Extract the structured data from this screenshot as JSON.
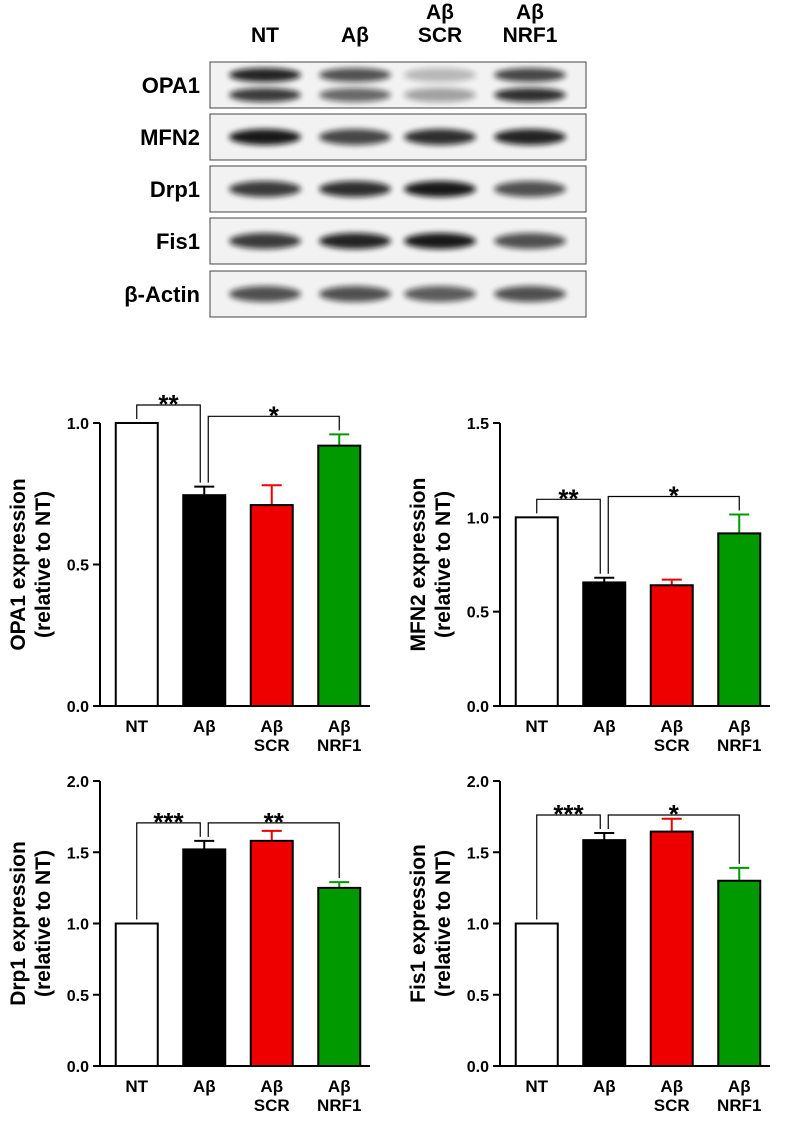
{
  "blot": {
    "lanes": [
      "NT",
      "Aβ",
      "Aβ\nSCR",
      "Aβ\nNRF1"
    ],
    "rows": [
      "OPA1",
      "MFN2",
      "Drp1",
      "Fis1",
      "β-Actin"
    ]
  },
  "chart_data": [
    {
      "type": "bar",
      "ylabel": "OPA1 expression\n(relative to NT)",
      "categories": [
        "NT",
        "Aβ",
        "Aβ\nSCR",
        "Aβ\nNRF1"
      ],
      "values": [
        1.0,
        0.745,
        0.71,
        0.92
      ],
      "errors": [
        0,
        0.03,
        0.07,
        0.04
      ],
      "colors": [
        "#ffffff",
        "#000000",
        "#ee0000",
        "#009900"
      ],
      "ylim": [
        0,
        1.0
      ],
      "yticks": [
        {
          "value": 0,
          "label": "0.0"
        },
        0.5,
        {
          "value": 1,
          "label": "1.0"
        }
      ],
      "annotations": [
        {
          "text": "**",
          "from": 0,
          "to": 1
        },
        {
          "text": "*",
          "from": 1,
          "to": 3
        }
      ]
    },
    {
      "type": "bar",
      "ylabel": "MFN2 expression\n(relative to NT)",
      "categories": [
        "NT",
        "Aβ",
        "Aβ\nSCR",
        "Aβ\nNRF1"
      ],
      "values": [
        1.0,
        0.655,
        0.64,
        0.915
      ],
      "errors": [
        0,
        0.025,
        0.03,
        0.1
      ],
      "colors": [
        "#ffffff",
        "#000000",
        "#ee0000",
        "#009900"
      ],
      "ylim": [
        0,
        1.5
      ],
      "yticks": [
        {
          "value": 0,
          "label": "0.0"
        },
        0.5,
        {
          "value": 1,
          "label": "1.0"
        },
        1.5
      ],
      "annotations": [
        {
          "text": "**",
          "from": 0,
          "to": 1
        },
        {
          "text": "*",
          "from": 1,
          "to": 3
        }
      ]
    },
    {
      "type": "bar",
      "ylabel": "Drp1 expression\n(relative to NT)",
      "categories": [
        "NT",
        "Aβ",
        "Aβ\nSCR",
        "Aβ\nNRF1"
      ],
      "values": [
        1.0,
        1.52,
        1.58,
        1.25
      ],
      "errors": [
        0,
        0.06,
        0.07,
        0.04
      ],
      "colors": [
        "#ffffff",
        "#000000",
        "#ee0000",
        "#009900"
      ],
      "ylim": [
        0,
        2.0
      ],
      "yticks": [
        {
          "value": 0,
          "label": "0.0"
        },
        0.5,
        {
          "value": 1,
          "label": "1.0"
        },
        1.5,
        {
          "value": 2,
          "label": "2.0"
        }
      ],
      "annotations": [
        {
          "text": "***",
          "from": 0,
          "to": 1
        },
        {
          "text": "**",
          "from": 1,
          "to": 3
        }
      ]
    },
    {
      "type": "bar",
      "ylabel": "Fis1 expression\n(relative to NT)",
      "categories": [
        "NT",
        "Aβ",
        "Aβ\nSCR",
        "Aβ\nNRF1"
      ],
      "values": [
        1.0,
        1.585,
        1.645,
        1.3
      ],
      "errors": [
        0,
        0.05,
        0.09,
        0.09
      ],
      "colors": [
        "#ffffff",
        "#000000",
        "#ee0000",
        "#009900"
      ],
      "ylim": [
        0,
        2.0
      ],
      "yticks": [
        {
          "value": 0,
          "label": "0.0"
        },
        0.5,
        {
          "value": 1,
          "label": "1.0"
        },
        1.5,
        {
          "value": 2,
          "label": "2.0"
        }
      ],
      "annotations": [
        {
          "text": "***",
          "from": 0,
          "to": 1
        },
        {
          "text": "*",
          "from": 1,
          "to": 3
        }
      ]
    }
  ]
}
